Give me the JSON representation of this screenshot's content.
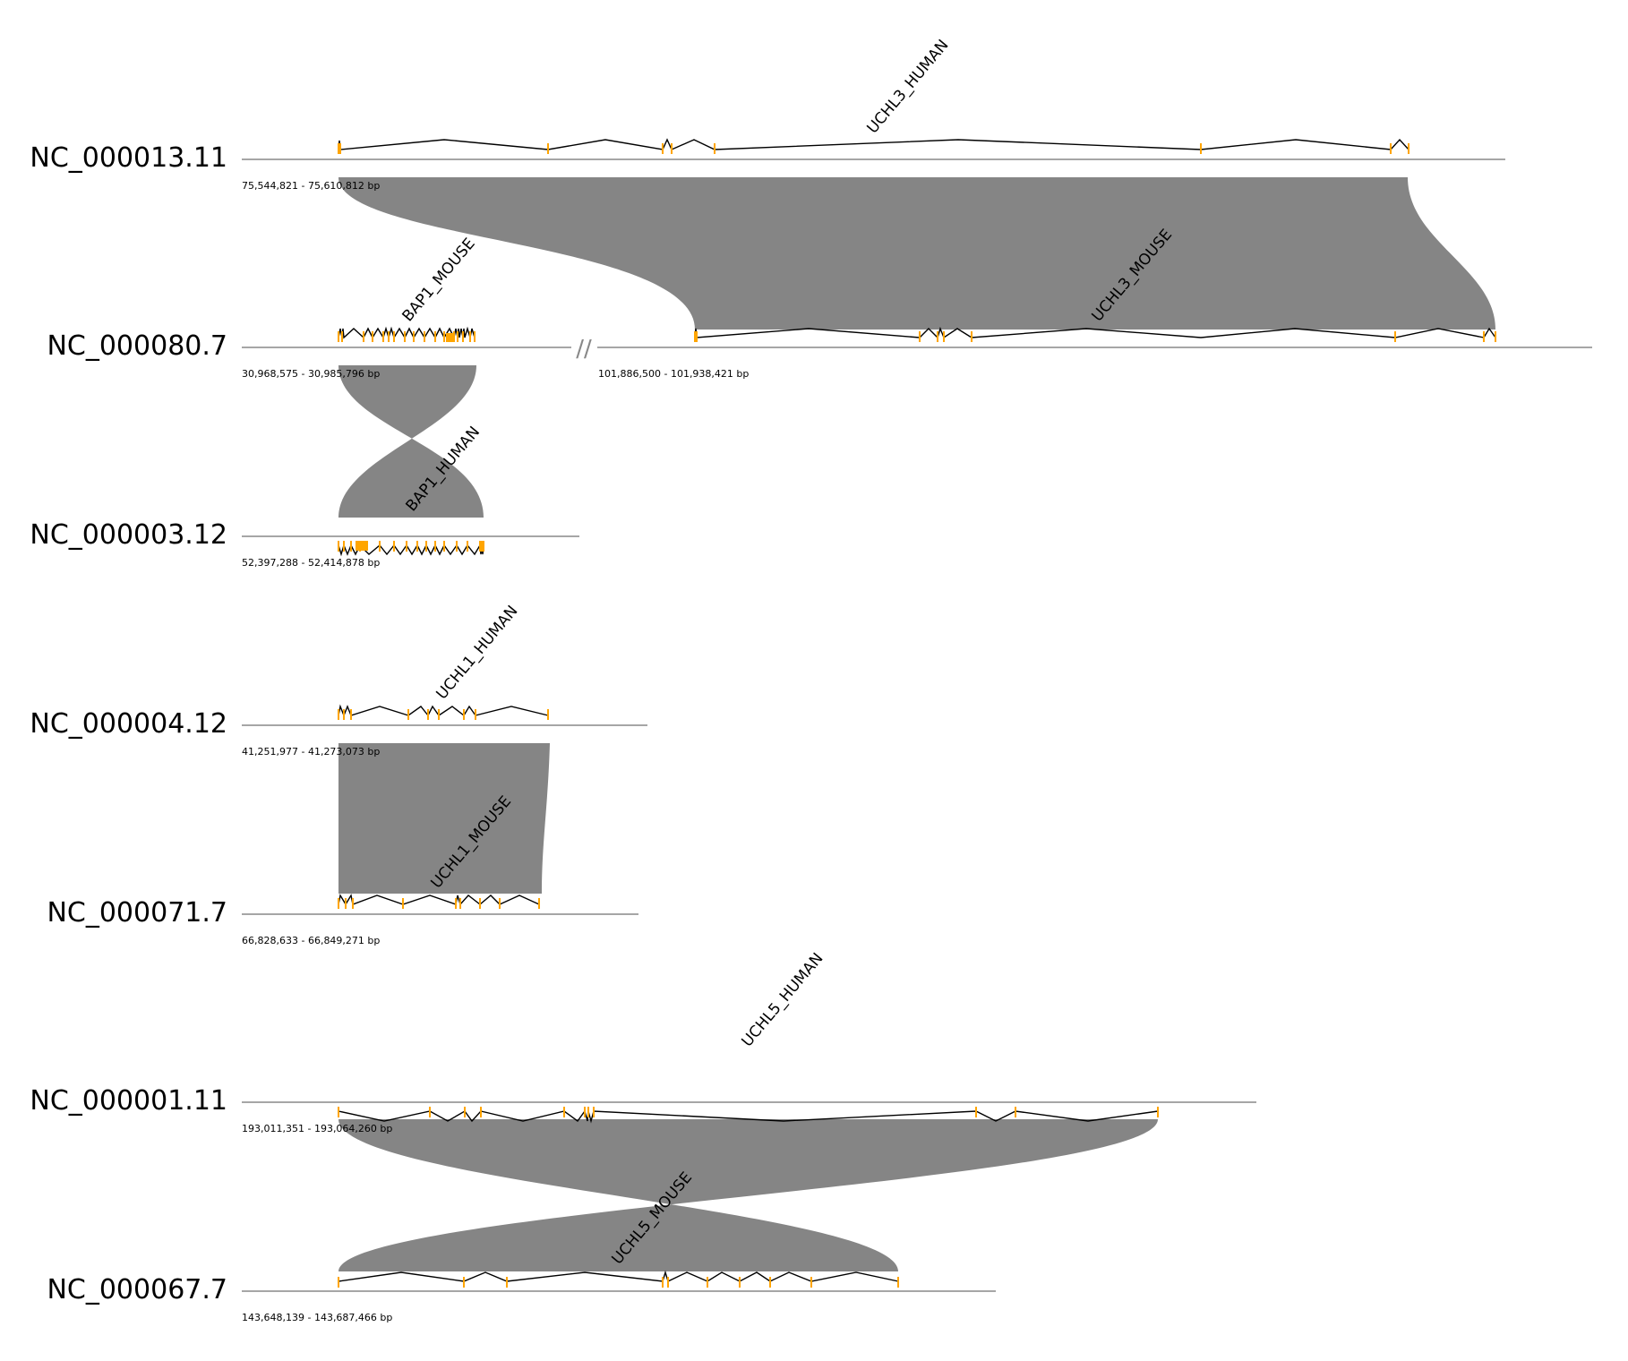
{
  "colors": {
    "background": "#ffffff",
    "axis": "#888888",
    "link": "#858585",
    "intron": "#000000",
    "exon": "#ffa500",
    "text": "#000000"
  },
  "tracks": [
    {
      "id": "t1",
      "name": "NC_000013.11",
      "segments": [
        {
          "range": "75,544,821 - 75,610,812 bp"
        }
      ]
    },
    {
      "id": "t2",
      "name": "NC_000080.7",
      "segments": [
        {
          "range": "30,968,575 - 30,985,796 bp"
        },
        {
          "range": "101,886,500 - 101,938,421 bp"
        }
      ],
      "break_mark": "//"
    },
    {
      "id": "t3",
      "name": "NC_000003.12",
      "segments": [
        {
          "range": "52,397,288 - 52,414,878 bp"
        }
      ]
    },
    {
      "id": "t4",
      "name": "NC_000004.12",
      "segments": [
        {
          "range": "41,251,977 - 41,273,073 bp"
        }
      ]
    },
    {
      "id": "t5",
      "name": "NC_000071.7",
      "segments": [
        {
          "range": "66,828,633 - 66,849,271 bp"
        }
      ]
    },
    {
      "id": "t6",
      "name": "NC_000001.11",
      "segments": [
        {
          "range": "193,011,351 - 193,064,260 bp"
        }
      ]
    },
    {
      "id": "t7",
      "name": "NC_000067.7",
      "segments": [
        {
          "range": "143,648,139 - 143,687,466 bp"
        }
      ]
    }
  ],
  "genes": [
    {
      "id": "g_uchl3_h",
      "name": "UCHL3_HUMAN",
      "track": "NC_000013.11",
      "strand": "+",
      "exons": 9
    },
    {
      "id": "g_bap1_m",
      "name": "BAP1_MOUSE",
      "track": "NC_000080.7",
      "strand": "+",
      "exons": 17
    },
    {
      "id": "g_uchl3_m",
      "name": "UCHL3_MOUSE",
      "track": "NC_000080.7",
      "strand": "+",
      "exons": 9
    },
    {
      "id": "g_bap1_h",
      "name": "BAP1_HUMAN",
      "track": "NC_000003.12",
      "strand": "-",
      "exons": 17
    },
    {
      "id": "g_uchl1_h",
      "name": "UCHL1_HUMAN",
      "track": "NC_000004.12",
      "strand": "+",
      "exons": 9
    },
    {
      "id": "g_uchl1_m",
      "name": "UCHL1_MOUSE",
      "track": "NC_000071.7",
      "strand": "+",
      "exons": 9
    },
    {
      "id": "g_uchl5_h",
      "name": "UCHL5_HUMAN",
      "track": "NC_000001.11",
      "strand": "-",
      "exons": 11
    },
    {
      "id": "g_uchl5_m",
      "name": "UCHL5_MOUSE",
      "track": "NC_000067.7",
      "strand": "+",
      "exons": 11
    }
  ],
  "links": [
    {
      "from": "UCHL3_HUMAN",
      "to": "UCHL3_MOUSE",
      "orientation": "same"
    },
    {
      "from": "BAP1_MOUSE",
      "to": "BAP1_HUMAN",
      "orientation": "inverted"
    },
    {
      "from": "UCHL1_HUMAN",
      "to": "UCHL1_MOUSE",
      "orientation": "same"
    },
    {
      "from": "UCHL5_HUMAN",
      "to": "UCHL5_MOUSE",
      "orientation": "inverted"
    }
  ]
}
